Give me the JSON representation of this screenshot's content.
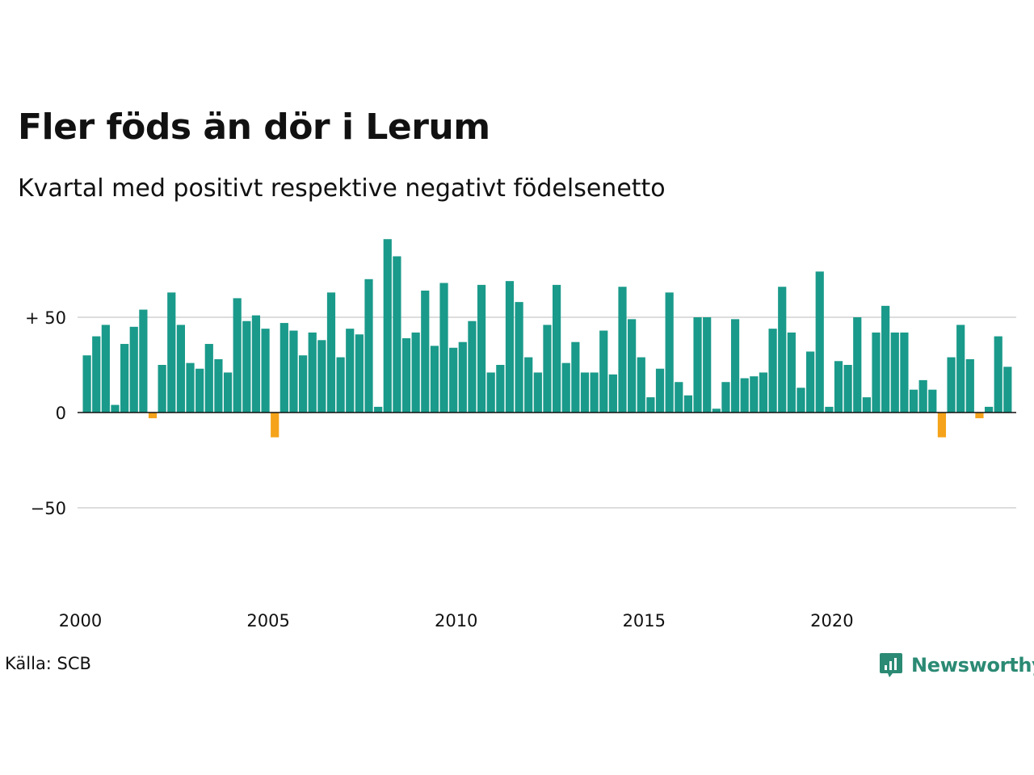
{
  "title": "Fler föds än dör i Lerum",
  "subtitle": "Kvartal med positivt respektive negativt födelsenetto",
  "source": "Källa: SCB",
  "brand": "Newsworthy",
  "colors": {
    "positive": "#1a9a8a",
    "negative": "#f5a31a",
    "grid": "#dddddd",
    "brand": "#2b8a74"
  },
  "chart_data": {
    "type": "bar",
    "title": "Fler föds än dör i Lerum",
    "subtitle": "Kvartal med positivt respektive negativt födelsenetto",
    "xlabel": "",
    "ylabel": "",
    "ylim": [
      -100,
      100
    ],
    "yticks": [
      {
        "value": 50,
        "label": "+ 50"
      },
      {
        "value": 0,
        "label": "0"
      },
      {
        "value": -50,
        "label": "−50"
      }
    ],
    "xticks": [
      {
        "value": 2000,
        "label": "2000"
      },
      {
        "value": 2005,
        "label": "2005"
      },
      {
        "value": 2010,
        "label": "2010"
      },
      {
        "value": 2015,
        "label": "2015"
      },
      {
        "value": 2020,
        "label": "2020"
      }
    ],
    "grid": true,
    "start_year": 2000,
    "values": [
      30,
      40,
      46,
      4,
      36,
      45,
      54,
      -3,
      25,
      63,
      46,
      26,
      23,
      36,
      28,
      21,
      60,
      48,
      51,
      44,
      -13,
      47,
      43,
      30,
      42,
      38,
      63,
      29,
      44,
      41,
      70,
      3,
      91,
      82,
      39,
      42,
      64,
      35,
      68,
      34,
      37,
      48,
      67,
      21,
      25,
      69,
      58,
      29,
      21,
      46,
      67,
      26,
      37,
      21,
      21,
      43,
      20,
      66,
      49,
      29,
      8,
      23,
      63,
      16,
      9,
      50,
      50,
      2,
      16,
      49,
      18,
      19,
      21,
      44,
      66,
      42,
      13,
      32,
      74,
      3,
      27,
      25,
      50,
      8,
      42,
      56,
      42,
      42,
      12,
      17,
      12,
      -13,
      29,
      46,
      28,
      -3,
      3,
      40,
      24
    ]
  }
}
